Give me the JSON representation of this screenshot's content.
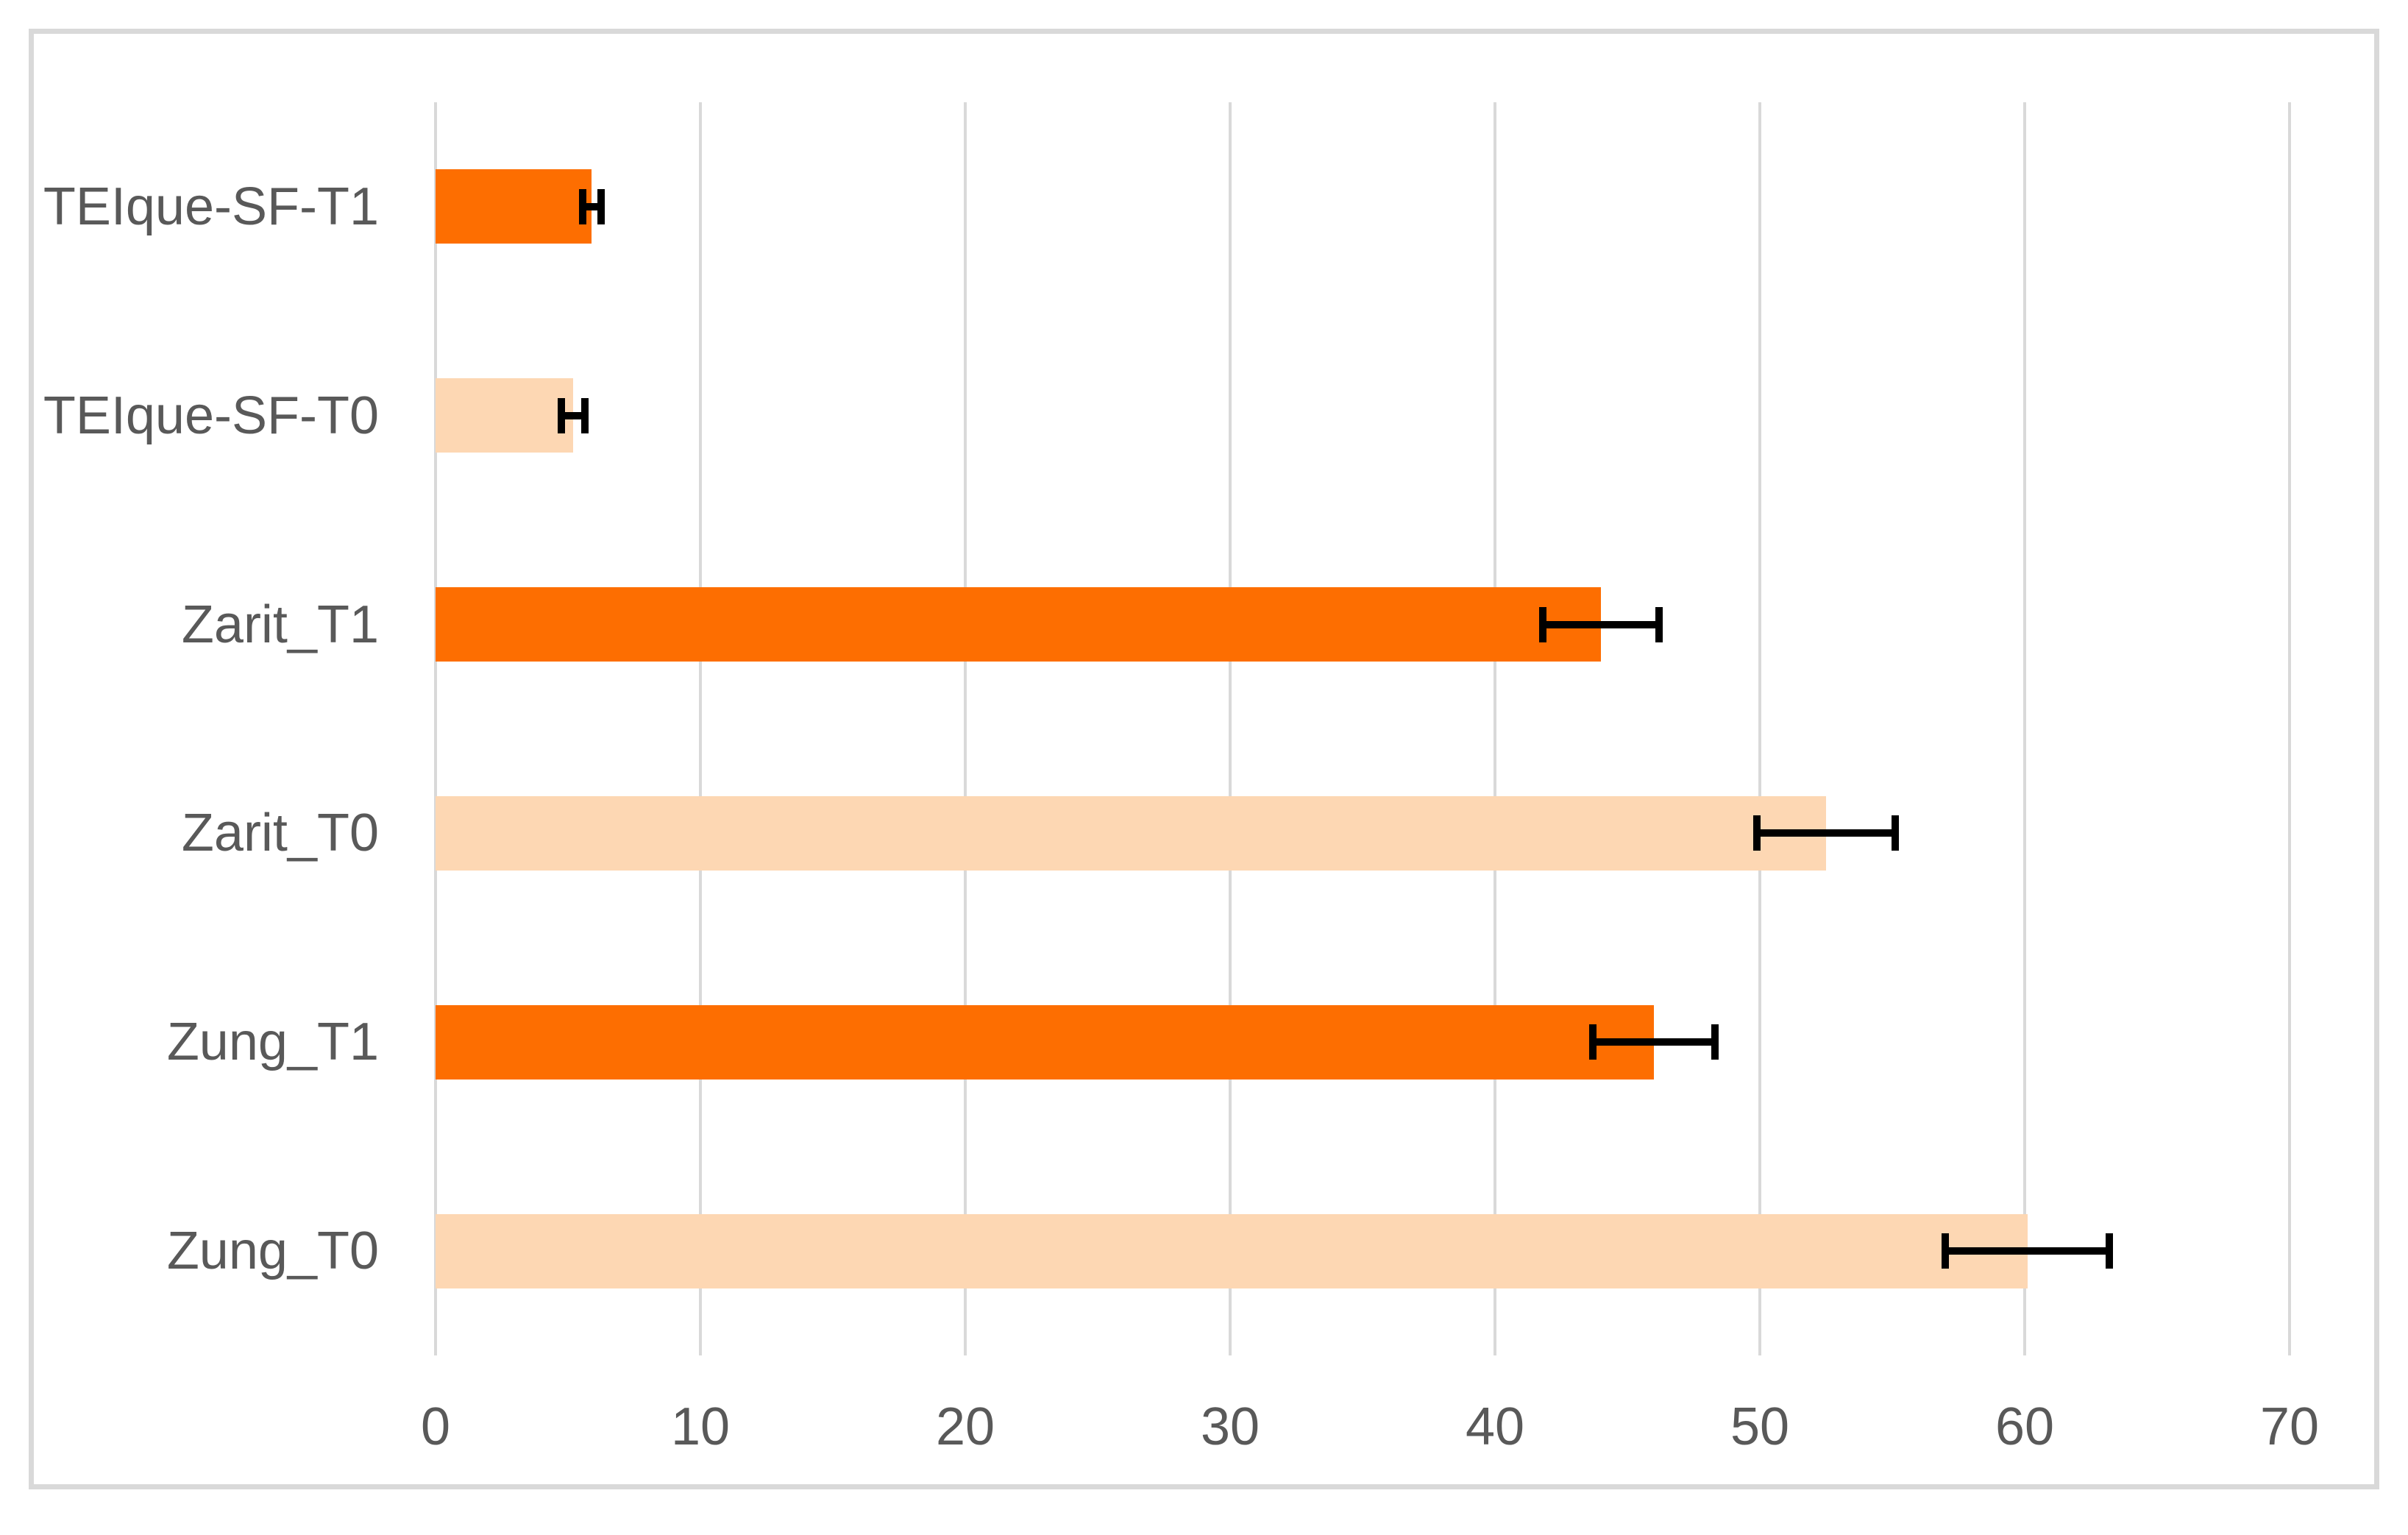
{
  "chart_data": {
    "type": "bar",
    "orientation": "horizontal",
    "title": "",
    "xlabel": "",
    "ylabel": "",
    "xlim": [
      0,
      70
    ],
    "xticks": [
      "0",
      "10",
      "20",
      "30",
      "40",
      "50",
      "60",
      "70"
    ],
    "grid": true,
    "legend": false,
    "categories": [
      "TEIque-SF-T1",
      "TEIque-SF-T0",
      "Zarit_T1",
      "Zarit_T0",
      "Zung_T1",
      "Zung_T0"
    ],
    "values": [
      5.9,
      5.2,
      44.0,
      52.5,
      46.0,
      60.1
    ],
    "errors": [
      0.35,
      0.45,
      2.2,
      2.6,
      2.3,
      3.1
    ],
    "bar_colors": [
      "#FD6E01",
      "#FDD7B3",
      "#FD6E01",
      "#FDD7B3",
      "#FD6E01",
      "#FDD7B3"
    ],
    "error_bar_color": "#000000",
    "gridline_color": "#D9D9D9",
    "frame_border_color": "#D9D9D9",
    "tick_label_color": "#595959",
    "category_label_color": "#595959",
    "background_color": "#FFFFFF"
  }
}
